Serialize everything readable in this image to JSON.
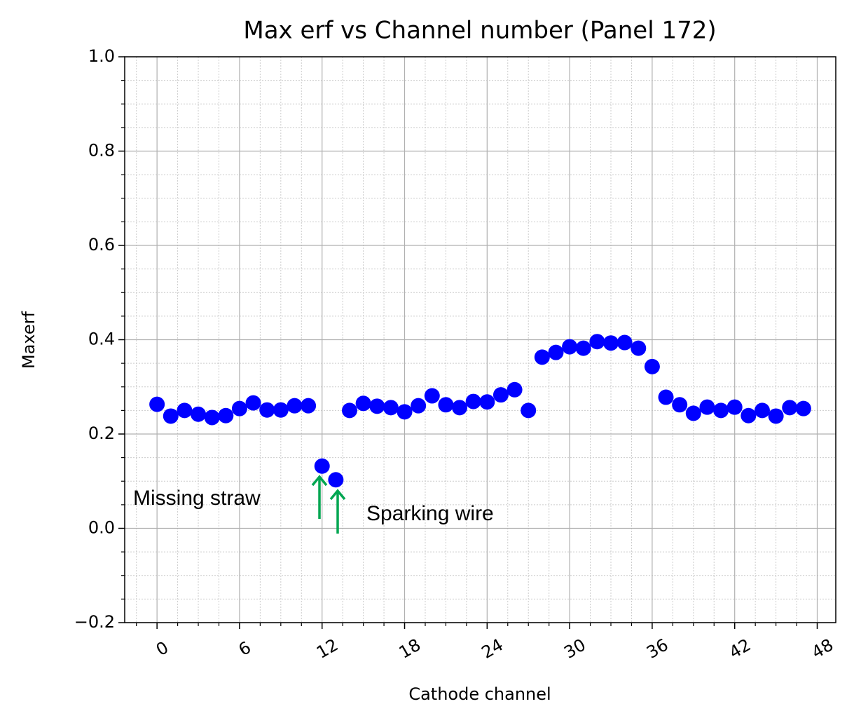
{
  "chart_data": {
    "type": "scatter",
    "title": "Max erf vs Channel number (Panel 172)",
    "x_label": "Cathode channel",
    "y_label": "Maxerf",
    "x": [
      0,
      1,
      2,
      3,
      4,
      5,
      6,
      7,
      8,
      9,
      10,
      11,
      12,
      13,
      14,
      15,
      16,
      17,
      18,
      19,
      20,
      21,
      22,
      23,
      24,
      25,
      26,
      27,
      28,
      29,
      30,
      31,
      32,
      33,
      34,
      35,
      36,
      37,
      38,
      39,
      40,
      41,
      42,
      43,
      44,
      45,
      46,
      47
    ],
    "values": [
      0.263,
      0.238,
      0.25,
      0.242,
      0.235,
      0.239,
      0.254,
      0.266,
      0.251,
      0.251,
      0.26,
      0.26,
      0.132,
      0.103,
      0.25,
      0.265,
      0.259,
      0.256,
      0.247,
      0.26,
      0.281,
      0.262,
      0.256,
      0.269,
      0.268,
      0.283,
      0.294,
      0.25,
      0.363,
      0.373,
      0.385,
      0.382,
      0.396,
      0.393,
      0.394,
      0.382,
      0.343,
      0.278,
      0.262,
      0.244,
      0.257,
      0.25,
      0.257,
      0.239,
      0.25,
      0.238,
      0.256,
      0.254
    ],
    "color": "#0000ff",
    "xlim": [
      -2.35,
      49.35
    ],
    "ylim": [
      -0.2,
      1.0
    ],
    "xticks": [
      0,
      6,
      12,
      18,
      24,
      30,
      36,
      42,
      48
    ],
    "yticks": [
      {
        "value": -0.2,
        "label": "−0.2"
      },
      {
        "value": 0,
        "label": "0.0"
      },
      0.2,
      0.4,
      0.6,
      0.8,
      {
        "value": 1,
        "label": "1.0"
      }
    ],
    "xminorticks": [
      -1.5,
      1.5,
      3,
      4.5,
      7.5,
      9,
      10.5,
      13.5,
      15,
      16.5,
      19.5,
      21,
      22.5,
      25.5,
      27,
      28.5,
      31.5,
      33,
      34.5,
      37.5,
      39,
      40.5,
      43.5,
      45,
      46.5
    ],
    "yminorticks": [
      -0.15,
      -0.1,
      -0.05,
      0.05,
      0.1,
      0.15,
      0.25,
      0.3,
      0.35,
      0.45,
      0.5,
      0.55,
      0.65,
      0.7,
      0.75,
      0.85,
      0.9,
      0.95
    ],
    "grid": true,
    "annotations": [
      "Missing straw",
      "Sparking wire"
    ]
  }
}
